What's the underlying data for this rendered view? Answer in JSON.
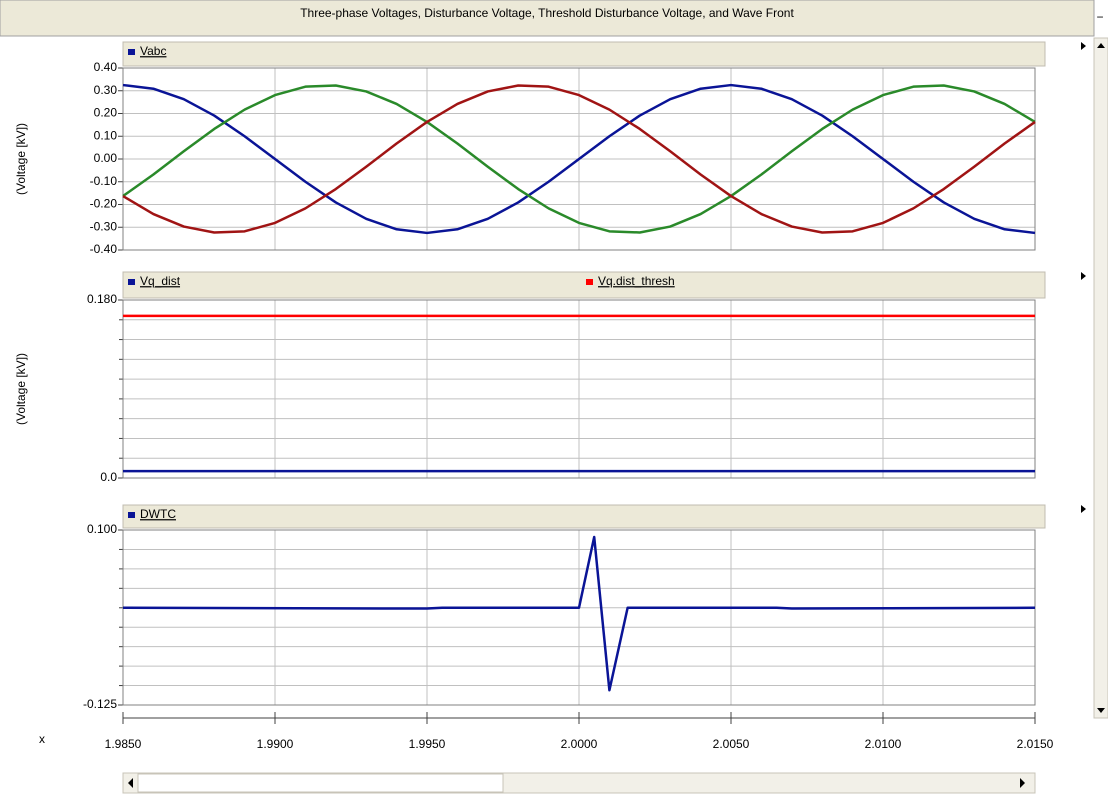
{
  "title": "Three-phase Voltages, Disturbance Voltage, Threshold Disturbance Voltage, and Wave Front",
  "x_axis": {
    "label": "x",
    "xlim": [
      1.985,
      2.015
    ],
    "xticks": [
      {
        "value": 1.985,
        "label": "1.9850"
      },
      {
        "value": 1.99,
        "label": "1.9900"
      },
      {
        "value": 1.995,
        "label": "1.9950"
      },
      {
        "value": 2.0,
        "label": "2.0000"
      },
      {
        "value": 2.005,
        "label": "2.0050"
      },
      {
        "value": 2.01,
        "label": "2.0100"
      },
      {
        "value": 2.015,
        "label": "2.0150"
      }
    ]
  },
  "chart_data": [
    {
      "type": "line",
      "ylabel": "(Voltage [kV])",
      "ylim": [
        -0.4,
        0.4
      ],
      "yticks": [
        {
          "value": 0.4,
          "label": "0.40"
        },
        {
          "value": 0.3,
          "label": "0.30"
        },
        {
          "value": 0.2,
          "label": "0.20"
        },
        {
          "value": 0.1,
          "label": "0.10"
        },
        {
          "value": 0,
          "label": "0.00"
        },
        {
          "value": -0.1,
          "label": "-0.10"
        },
        {
          "value": -0.2,
          "label": "-0.20"
        },
        {
          "value": -0.3,
          "label": "-0.30"
        },
        {
          "value": -0.4,
          "label": "-0.40"
        }
      ],
      "x": [
        1.985,
        1.986,
        1.987,
        1.988,
        1.989,
        1.99,
        1.991,
        1.992,
        1.993,
        1.994,
        1.995,
        1.996,
        1.997,
        1.998,
        1.999,
        2.0,
        2.001,
        2.002,
        2.003,
        2.004,
        2.005,
        2.006,
        2.007,
        2.008,
        2.009,
        2.01,
        2.011,
        2.012,
        2.013,
        2.014,
        2.015
      ],
      "series": [
        {
          "name": "Vabc",
          "color": "#0a1496",
          "values": [
            0.325,
            0.309,
            0.263,
            0.191,
            0.1,
            0,
            -0.1,
            -0.191,
            -0.263,
            -0.309,
            -0.325,
            -0.309,
            -0.263,
            -0.191,
            -0.1,
            0,
            0.1,
            0.191,
            0.263,
            0.309,
            0.325,
            0.309,
            0.263,
            0.191,
            0.1,
            0,
            -0.1,
            -0.191,
            -0.263,
            -0.309,
            -0.325
          ]
        },
        {
          "color": "#2a8a2a",
          "values": [
            -0.163,
            -0.068,
            0.034,
            0.132,
            0.217,
            0.281,
            0.318,
            0.323,
            0.297,
            0.242,
            0.163,
            0.068,
            -0.034,
            -0.132,
            -0.217,
            -0.281,
            -0.318,
            -0.323,
            -0.297,
            -0.242,
            -0.163,
            -0.068,
            0.034,
            0.132,
            0.217,
            0.281,
            0.318,
            0.323,
            0.297,
            0.242,
            0.163
          ]
        },
        {
          "color": "#a01414",
          "values": [
            -0.163,
            -0.242,
            -0.297,
            -0.323,
            -0.318,
            -0.281,
            -0.217,
            -0.132,
            -0.034,
            0.068,
            0.163,
            0.242,
            0.297,
            0.323,
            0.318,
            0.281,
            0.217,
            0.132,
            0.034,
            -0.068,
            -0.163,
            -0.242,
            -0.297,
            -0.323,
            -0.318,
            -0.281,
            -0.217,
            -0.132,
            -0.034,
            0.068,
            0.163
          ]
        }
      ]
    },
    {
      "type": "line",
      "ylabel": "(Voltage [kV])",
      "ylim": [
        0,
        0.18
      ],
      "yticks": [
        {
          "value": 0.18,
          "label": "0.180"
        },
        {
          "value": 0,
          "label": "0.0"
        }
      ],
      "yminorticks": [
        0.02,
        0.04,
        0.06,
        0.08,
        0.1,
        0.12,
        0.14,
        0.16
      ],
      "x": [
        1.985,
        2.015
      ],
      "series": [
        {
          "name": "Vq_dist",
          "color": "#0a1496",
          "values": [
            0.007,
            0.007
          ]
        },
        {
          "name": "Vq.dist_thresh",
          "color": "#ff0000",
          "values": [
            0.164,
            0.164
          ]
        }
      ]
    },
    {
      "type": "line",
      "ylim": [
        -0.125,
        0.1
      ],
      "yticks": [
        {
          "value": 0.1,
          "label": "0.100"
        },
        {
          "value": -0.125,
          "label": "-0.125"
        }
      ],
      "yminorticks": [
        0.075,
        0.05,
        0.025,
        0,
        -0.025,
        -0.05,
        -0.075,
        -0.1
      ],
      "x": [
        1.985,
        1.995,
        1.9955,
        2.0,
        2.0005,
        2.001,
        2.0016,
        2.0065,
        2.007,
        2.015
      ],
      "series": [
        {
          "name": "DWTC",
          "color": "#0a1496",
          "values": [
            0,
            -0.001,
            0,
            0,
            0.091,
            -0.106,
            0,
            0,
            -0.001,
            0
          ]
        }
      ]
    }
  ]
}
